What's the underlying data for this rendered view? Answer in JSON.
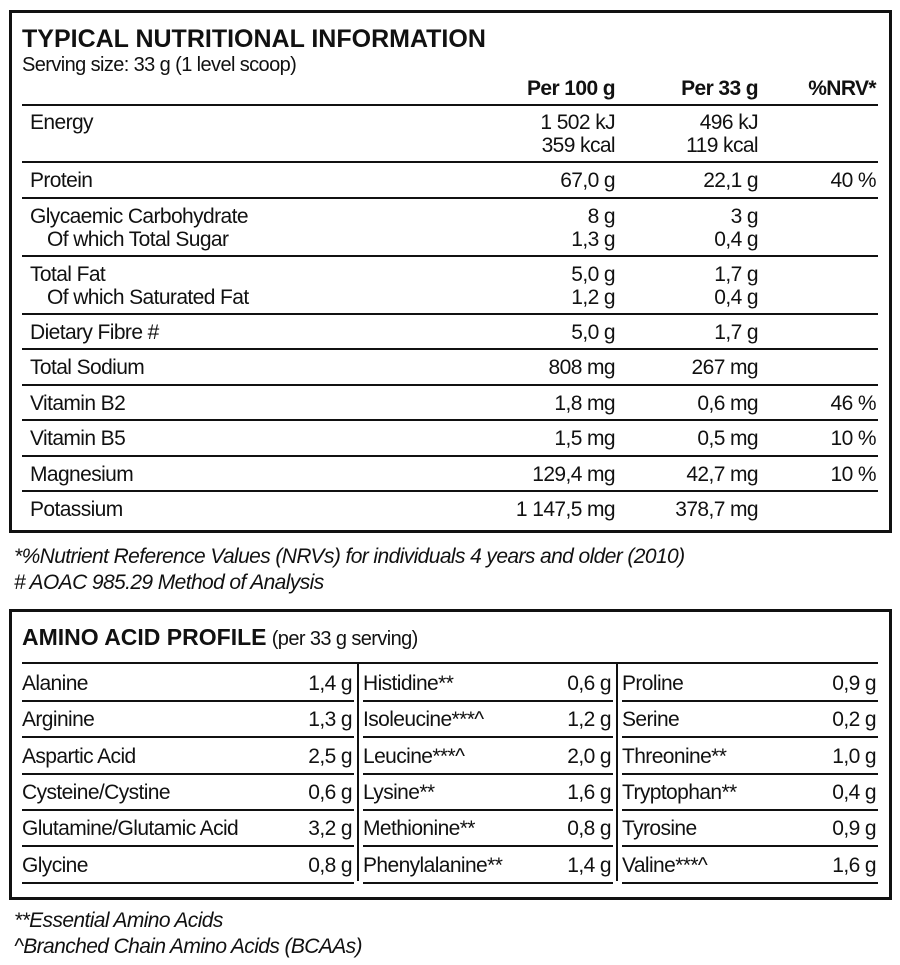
{
  "nutrition": {
    "title": "TYPICAL NUTRITIONAL INFORMATION",
    "serving": "Serving size: 33 g (1 level scoop)",
    "headers": [
      "Per 100 g",
      "Per 33 g",
      "%NRV*"
    ],
    "rows": [
      {
        "label": [
          "Energy"
        ],
        "per_100g": [
          "1 502 kJ",
          "359 kcal"
        ],
        "per_33g": [
          "496 kJ",
          "119 kcal"
        ]
      },
      {
        "label": [
          "Protein"
        ],
        "per_100g": [
          "67,0 g"
        ],
        "per_33g": [
          "22,1 g"
        ],
        "nrv": "40 %"
      },
      {
        "label": [
          "Glycaemic Carbohydrate",
          "Of which Total Sugar"
        ],
        "per_100g": [
          "8 g",
          "1,3 g"
        ],
        "per_33g": [
          "3 g",
          "0,4 g"
        ]
      },
      {
        "label": [
          "Total Fat",
          "Of which Saturated Fat"
        ],
        "per_100g": [
          "5,0 g",
          "1,2 g"
        ],
        "per_33g": [
          "1,7 g",
          "0,4 g"
        ]
      },
      {
        "label": [
          "Dietary Fibre #"
        ],
        "per_100g": [
          "5,0 g"
        ],
        "per_33g": [
          "1,7 g"
        ]
      },
      {
        "label": [
          "Total Sodium"
        ],
        "per_100g": [
          "808 mg"
        ],
        "per_33g": [
          "267 mg"
        ]
      },
      {
        "label": [
          "Vitamin B2"
        ],
        "per_100g": [
          "1,8 mg"
        ],
        "per_33g": [
          "0,6 mg"
        ],
        "nrv": "46 %"
      },
      {
        "label": [
          "Vitamin B5"
        ],
        "per_100g": [
          "1,5 mg"
        ],
        "per_33g": [
          "0,5 mg"
        ],
        "nrv": "10 %"
      },
      {
        "label": [
          "Magnesium"
        ],
        "per_100g": [
          "129,4 mg"
        ],
        "per_33g": [
          "42,7 mg"
        ],
        "nrv": "10 %"
      },
      {
        "label": [
          "Potassium"
        ],
        "per_100g": [
          "1 147,5 mg"
        ],
        "per_33g": [
          "378,7 mg"
        ]
      }
    ],
    "footnotes": [
      "*%Nutrient Reference Values (NRVs) for individuals 4 years and older (2010)",
      "# AOAC 985.29 Method of Analysis"
    ]
  },
  "amino": {
    "title": "AMINO ACID PROFILE",
    "subtitle": "(per 33 g serving)",
    "columns": [
      [
        {
          "name": "Alanine",
          "amount": "1,4 g"
        },
        {
          "name": "Arginine",
          "amount": "1,3 g"
        },
        {
          "name": "Aspartic Acid",
          "amount": "2,5 g"
        },
        {
          "name": "Cysteine/Cystine",
          "amount": "0,6 g"
        },
        {
          "name": "Glutamine/Glutamic Acid",
          "amount": "3,2 g"
        },
        {
          "name": "Glycine",
          "amount": "0,8 g"
        }
      ],
      [
        {
          "name": "Histidine**",
          "amount": "0,6 g"
        },
        {
          "name": "Isoleucine***^",
          "amount": "1,2 g"
        },
        {
          "name": "Leucine***^",
          "amount": "2,0 g"
        },
        {
          "name": "Lysine**",
          "amount": "1,6 g"
        },
        {
          "name": "Methionine**",
          "amount": "0,8 g"
        },
        {
          "name": "Phenylalanine**",
          "amount": "1,4 g"
        }
      ],
      [
        {
          "name": "Proline",
          "amount": "0,9 g"
        },
        {
          "name": "Serine",
          "amount": "0,2 g"
        },
        {
          "name": "Threonine**",
          "amount": "1,0 g"
        },
        {
          "name": "Tryptophan**",
          "amount": "0,4 g"
        },
        {
          "name": "Tyrosine",
          "amount": "0,9 g"
        },
        {
          "name": "Valine***^",
          "amount": "1,6 g"
        }
      ]
    ],
    "footnotes": [
      "**Essential Amino Acids",
      "^Branched Chain Amino Acids (BCAAs)"
    ]
  }
}
